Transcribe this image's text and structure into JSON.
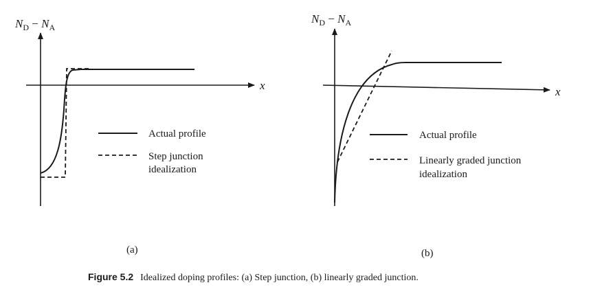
{
  "panels": [
    {
      "id": "a",
      "y_axis_label": "N",
      "y_sub_1": "D",
      "minus": " − ",
      "y_axis_label_2": "N",
      "y_sub_2": "A",
      "x_axis_label": "x",
      "legend": [
        {
          "style": "solid",
          "line1": "Actual profile",
          "line2": ""
        },
        {
          "style": "dashed",
          "line1": "Step junction",
          "line2": "idealization"
        }
      ],
      "panel_label": "(a)"
    },
    {
      "id": "b",
      "y_axis_label": "N",
      "y_sub_1": "D",
      "minus": " − ",
      "y_axis_label_2": "N",
      "y_sub_2": "A",
      "x_axis_label": "x",
      "legend": [
        {
          "style": "solid",
          "line1": "Actual profile",
          "line2": ""
        },
        {
          "style": "dashed",
          "line1": "Linearly graded junction",
          "line2": "idealization"
        }
      ],
      "panel_label": "(b)"
    }
  ],
  "caption": {
    "number": "Figure 5.2",
    "text": "Idealized doping profiles: (a) Step junction, (b) linearly graded junction."
  }
}
